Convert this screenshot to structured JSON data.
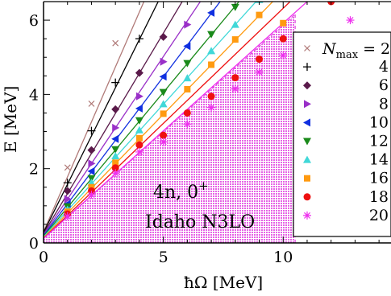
{
  "chart_data": {
    "type": "scatter",
    "title": "",
    "xlabel": "ħΩ [MeV]",
    "ylabel": "E [MeV]",
    "xlim": [
      0,
      14.5
    ],
    "ylim": [
      0,
      6.5
    ],
    "xticks": [
      0,
      5,
      10
    ],
    "yticks": [
      0,
      2,
      4,
      6
    ],
    "grid": false,
    "legend_placement": "right",
    "legend_title": "N",
    "legend_title_sub": "max",
    "legend_title_suffix": " = 2",
    "annotations": [
      "4n, 0",
      "+",
      "Idaho N3LO"
    ],
    "shaded_region": {
      "color": "#e040e0",
      "x_max": 10.5,
      "lower_intercept": 0.32,
      "upper_intercept": 0.12,
      "upper_slope": 0.575
    },
    "series": [
      {
        "name": "2",
        "marker": "x",
        "color": "#b07a78",
        "slope": 1.48,
        "intercept": 0.3,
        "x": [
          1,
          2,
          3
        ],
        "y": [
          2.03,
          3.75,
          5.38
        ]
      },
      {
        "name": "4",
        "marker": "+",
        "color": "#000000",
        "slope": 1.3,
        "intercept": 0.28,
        "x": [
          1,
          2,
          3,
          4
        ],
        "y": [
          1.62,
          3.02,
          4.32,
          5.5
        ]
      },
      {
        "name": "6",
        "marker": "diamond",
        "color": "#5a1a4a",
        "slope": 1.08,
        "intercept": 0.25,
        "x": [
          1,
          2,
          3,
          4,
          5
        ],
        "y": [
          1.4,
          2.5,
          3.6,
          4.58,
          5.55
        ]
      },
      {
        "name": "8",
        "marker": "triangle-right",
        "color": "#9a30c8",
        "slope": 0.96,
        "intercept": 0.22,
        "x": [
          1,
          2,
          3,
          4,
          5,
          6
        ],
        "y": [
          1.18,
          2.14,
          3.1,
          3.95,
          4.88,
          5.88
        ]
      },
      {
        "name": "10",
        "marker": "triangle-left",
        "color": "#1030e0",
        "slope": 0.855,
        "intercept": 0.2,
        "x": [
          1,
          2,
          3,
          4,
          5,
          6,
          7
        ],
        "y": [
          1.05,
          1.93,
          2.8,
          3.62,
          4.48,
          5.3,
          6.2
        ]
      },
      {
        "name": "12",
        "marker": "triangle-down",
        "color": "#1a8a1a",
        "slope": 0.775,
        "intercept": 0.18,
        "x": [
          1,
          2,
          3,
          4,
          5,
          6,
          7,
          8
        ],
        "y": [
          0.98,
          1.74,
          2.52,
          3.3,
          4.06,
          4.84,
          5.62,
          6.35
        ]
      },
      {
        "name": "14",
        "marker": "triangle-up",
        "color": "#40d8d8",
        "slope": 0.715,
        "intercept": 0.16,
        "x": [
          1,
          2,
          3,
          4,
          5,
          6,
          7,
          8,
          9
        ],
        "y": [
          0.9,
          1.62,
          2.34,
          3.04,
          3.74,
          4.44,
          5.17,
          5.88,
          6.55
        ]
      },
      {
        "name": "16",
        "marker": "square",
        "color": "#ff9a10",
        "slope": 0.665,
        "intercept": 0.14,
        "x": [
          1,
          2,
          3,
          4,
          5,
          6,
          7,
          8,
          9,
          10
        ],
        "y": [
          0.84,
          1.5,
          2.16,
          2.82,
          3.48,
          4.14,
          4.8,
          5.48,
          6.14,
          5.92
        ]
      },
      {
        "name": "18",
        "marker": "circle",
        "color": "#ee1010",
        "slope": 0.62,
        "intercept": 0.12,
        "x": [
          1,
          2,
          3,
          4,
          5,
          6,
          7,
          8,
          9,
          10,
          12
        ],
        "y": [
          0.78,
          1.4,
          2.02,
          2.64,
          2.9,
          3.5,
          3.95,
          4.45,
          4.95,
          5.5,
          6.5
        ]
      },
      {
        "name": "20",
        "marker": "asterisk",
        "color": "#ee30ee",
        "slope": 0.58,
        "intercept": 0.12,
        "x": [
          1,
          2,
          3,
          4,
          5,
          6,
          7,
          8,
          9,
          10,
          12.8
        ],
        "y": [
          0.72,
          1.3,
          1.88,
          2.45,
          2.72,
          3.2,
          3.65,
          4.15,
          4.6,
          5.05,
          6.0
        ]
      }
    ]
  }
}
